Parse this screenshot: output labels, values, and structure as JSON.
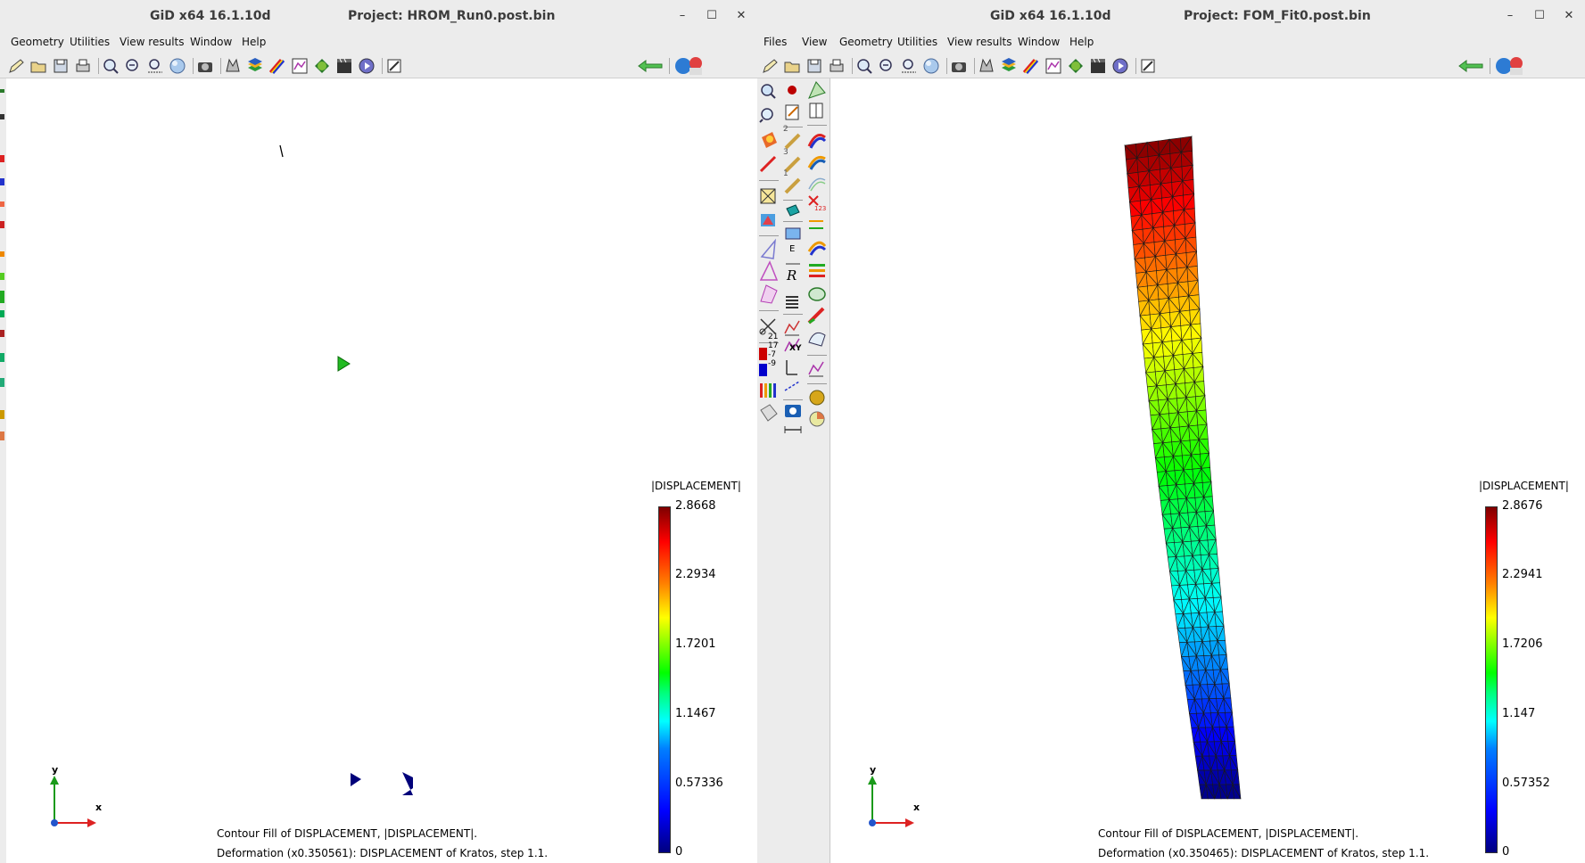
{
  "left_window": {
    "app_title": "GiD x64 16.1.10d",
    "project_title": "Project: HROM_Run0.post.bin",
    "window_controls": [
      "–",
      "☐",
      "✕"
    ],
    "menu": [
      "Geometry",
      "Utilities",
      "View results",
      "Window",
      "Help"
    ],
    "legend": {
      "title": "|DISPLACEMENT|",
      "ticks": [
        "2.8668",
        "2.2934",
        "1.7201",
        "1.1467",
        "0.57336",
        "0"
      ]
    },
    "caption_line1": "Contour Fill of DISPLACEMENT, |DISPLACEMENT|.",
    "caption_line2": "Deformation (x0.350561): DISPLACEMENT of Kratos, step 1.1.",
    "axis": {
      "x": "x",
      "y": "y"
    }
  },
  "right_window": {
    "app_title": "GiD x64 16.1.10d",
    "project_title": "Project: FOM_Fit0.post.bin",
    "window_controls": [
      "–",
      "☐",
      "✕"
    ],
    "menu": [
      "Files",
      "View",
      "Geometry",
      "Utilities",
      "View results",
      "Window",
      "Help"
    ],
    "legend": {
      "title": "|DISPLACEMENT|",
      "ticks": [
        "2.8676",
        "2.2941",
        "1.7206",
        "1.147",
        "0.57352",
        "0"
      ]
    },
    "caption_line1": "Contour Fill of DISPLACEMENT, |DISPLACEMENT|.",
    "caption_line2": "Deformation (x0.350465): DISPLACEMENT of Kratos, step 1.1.",
    "axis": {
      "x": "x",
      "y": "y"
    },
    "side_labels": {
      "s1": "2",
      "s2": "3",
      "s3": "1",
      "c1": "21",
      "c2": "17",
      "c3": "-7",
      "c4": "-9",
      "e": "E",
      "r": "R",
      "xy": "XY",
      "num": "123"
    }
  },
  "toolbar_icons": [
    "pencil-icon",
    "open-folder-icon",
    "save-icon",
    "print-icon",
    "zoom-in-icon",
    "zoom-out-icon",
    "zoom-frame-icon",
    "sphere-icon",
    "camera-icon",
    "view-icon",
    "layers-icon",
    "rainbow-icon",
    "graph-icon",
    "render-icon",
    "movie-icon",
    "play-icon",
    "edit-note-icon",
    "back-arrow-icon",
    "gid-logo-icon"
  ],
  "colors": {
    "chrome": "#ececec",
    "canvas": "#ffffff"
  }
}
